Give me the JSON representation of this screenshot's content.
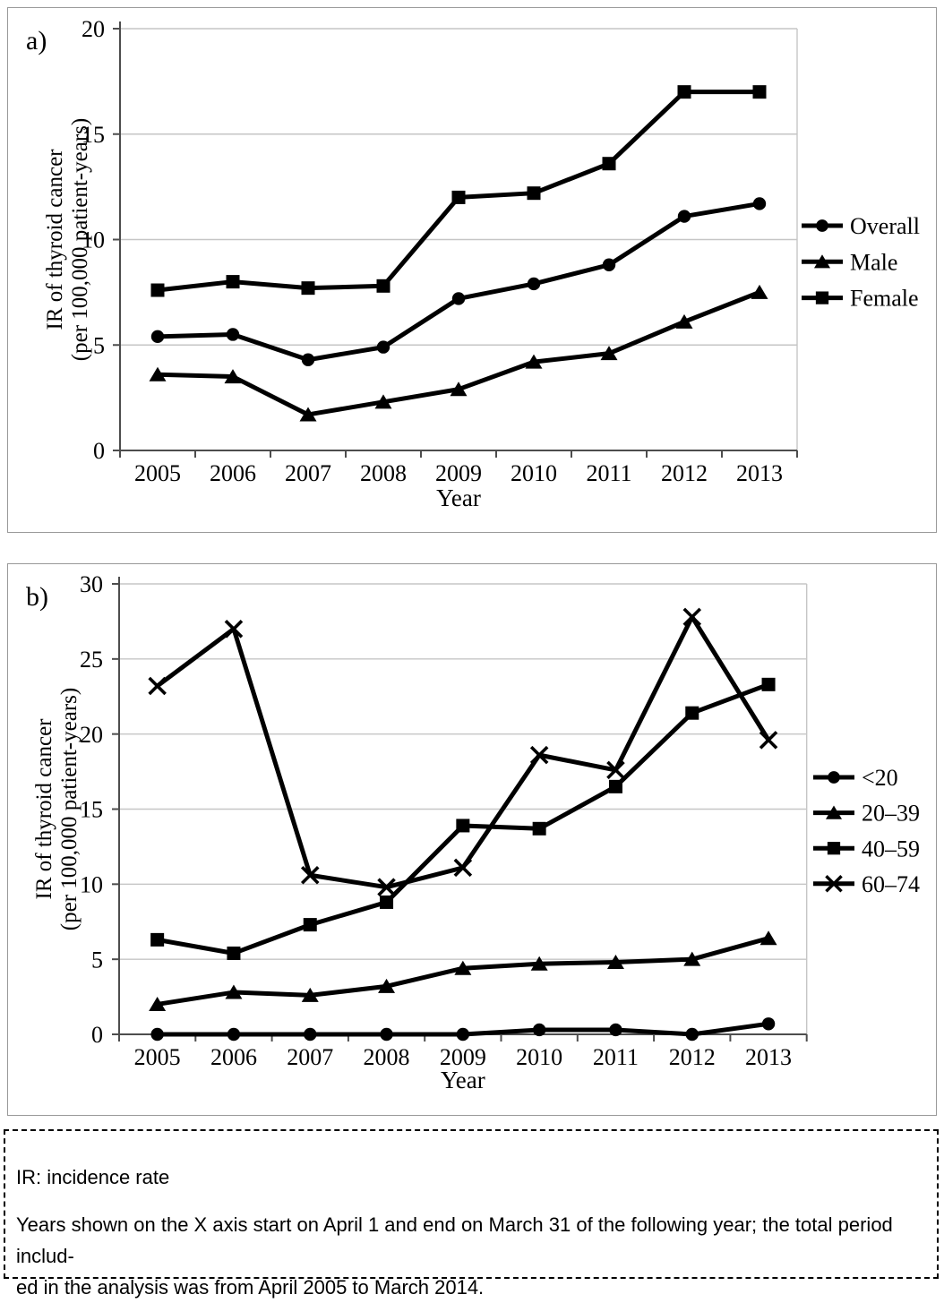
{
  "caption": {
    "lines": [
      "IR: incidence rate",
      "Years shown on the X axis start on April 1 and end on March 31 of the following year; the total period  includ-",
      "ed in the analysis was from April 2005 to March 2014."
    ]
  },
  "colors": {
    "series": "#000000",
    "grid": "#c6c6c6",
    "axis": "#4d4d4d",
    "panel_border": "#999999",
    "text": "#1a1a1a"
  },
  "chart_data": [
    {
      "type": "line",
      "panel_label": "a)",
      "xlabel": "Year",
      "ylabel_lines": [
        "IR of thyroid cancer",
        "(per 100,000 patient-years)"
      ],
      "categories": [
        "2005",
        "2006",
        "2007",
        "2008",
        "2009",
        "2010",
        "2011",
        "2012",
        "2013"
      ],
      "ylim": [
        0,
        20
      ],
      "ytick_step": 5,
      "grid": true,
      "legend_position": "right",
      "series": [
        {
          "name": "Overall",
          "marker": "circle",
          "values": [
            5.4,
            5.5,
            4.3,
            4.9,
            7.2,
            7.9,
            8.8,
            11.1,
            11.7
          ]
        },
        {
          "name": "Male",
          "marker": "triangle",
          "values": [
            3.6,
            3.5,
            1.7,
            2.3,
            2.9,
            4.2,
            4.6,
            6.1,
            7.5
          ]
        },
        {
          "name": "Female",
          "marker": "square",
          "values": [
            7.6,
            8.0,
            7.7,
            7.8,
            12.0,
            12.2,
            13.6,
            17.0,
            17.0
          ]
        }
      ]
    },
    {
      "type": "line",
      "panel_label": "b)",
      "xlabel": "Year",
      "ylabel_lines": [
        "IR of thyroid cancer",
        "(per 100,000 patient-years)"
      ],
      "categories": [
        "2005",
        "2006",
        "2007",
        "2008",
        "2009",
        "2010",
        "2011",
        "2012",
        "2013"
      ],
      "ylim": [
        0,
        30
      ],
      "ytick_step": 5,
      "grid": true,
      "legend_position": "right",
      "series": [
        {
          "name": "<20",
          "marker": "circle",
          "values": [
            0.0,
            0.0,
            0.0,
            0.0,
            0.0,
            0.3,
            0.3,
            0.0,
            0.7
          ]
        },
        {
          "name": "20–39",
          "marker": "triangle",
          "values": [
            2.0,
            2.8,
            2.6,
            3.2,
            4.4,
            4.7,
            4.8,
            5.0,
            6.4
          ]
        },
        {
          "name": "40–59",
          "marker": "square",
          "values": [
            6.3,
            5.4,
            7.3,
            8.8,
            13.9,
            13.7,
            16.5,
            21.4,
            23.3
          ]
        },
        {
          "name": "60–74",
          "marker": "x",
          "values": [
            23.2,
            27.0,
            10.6,
            9.8,
            11.1,
            18.6,
            17.6,
            27.8,
            19.6
          ]
        }
      ]
    }
  ]
}
